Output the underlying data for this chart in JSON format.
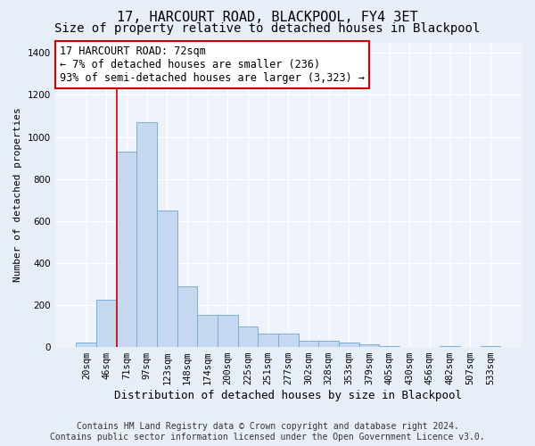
{
  "title": "17, HARCOURT ROAD, BLACKPOOL, FY4 3ET",
  "subtitle": "Size of property relative to detached houses in Blackpool",
  "xlabel": "Distribution of detached houses by size in Blackpool",
  "ylabel": "Number of detached properties",
  "footer1": "Contains HM Land Registry data © Crown copyright and database right 2024.",
  "footer2": "Contains public sector information licensed under the Open Government Licence v3.0.",
  "bar_labels": [
    "20sqm",
    "46sqm",
    "71sqm",
    "97sqm",
    "123sqm",
    "148sqm",
    "174sqm",
    "200sqm",
    "225sqm",
    "251sqm",
    "277sqm",
    "302sqm",
    "328sqm",
    "353sqm",
    "379sqm",
    "405sqm",
    "430sqm",
    "456sqm",
    "482sqm",
    "507sqm",
    "533sqm"
  ],
  "bar_values": [
    20,
    225,
    930,
    1070,
    650,
    290,
    155,
    155,
    100,
    65,
    65,
    30,
    30,
    20,
    15,
    5,
    0,
    0,
    5,
    0,
    5
  ],
  "bar_color": "#c5d8f0",
  "bar_edgecolor": "#7bafd4",
  "annotation_line1": "17 HARCOURT ROAD: 72sqm",
  "annotation_line2": "← 7% of detached houses are smaller (236)",
  "annotation_line3": "93% of semi-detached houses are larger (3,323) →",
  "annotation_box_edgecolor": "#cc0000",
  "vline_color": "#cc0000",
  "vline_bar_index": 2,
  "ylim": [
    0,
    1450
  ],
  "yticks": [
    0,
    200,
    400,
    600,
    800,
    1000,
    1200,
    1400
  ],
  "bg_color": "#e8eef8",
  "plot_bg_color": "#edf2fb",
  "grid_color": "#ffffff",
  "title_fontsize": 11,
  "subtitle_fontsize": 10,
  "xlabel_fontsize": 9,
  "ylabel_fontsize": 8,
  "tick_fontsize": 7.5,
  "footer_fontsize": 7
}
